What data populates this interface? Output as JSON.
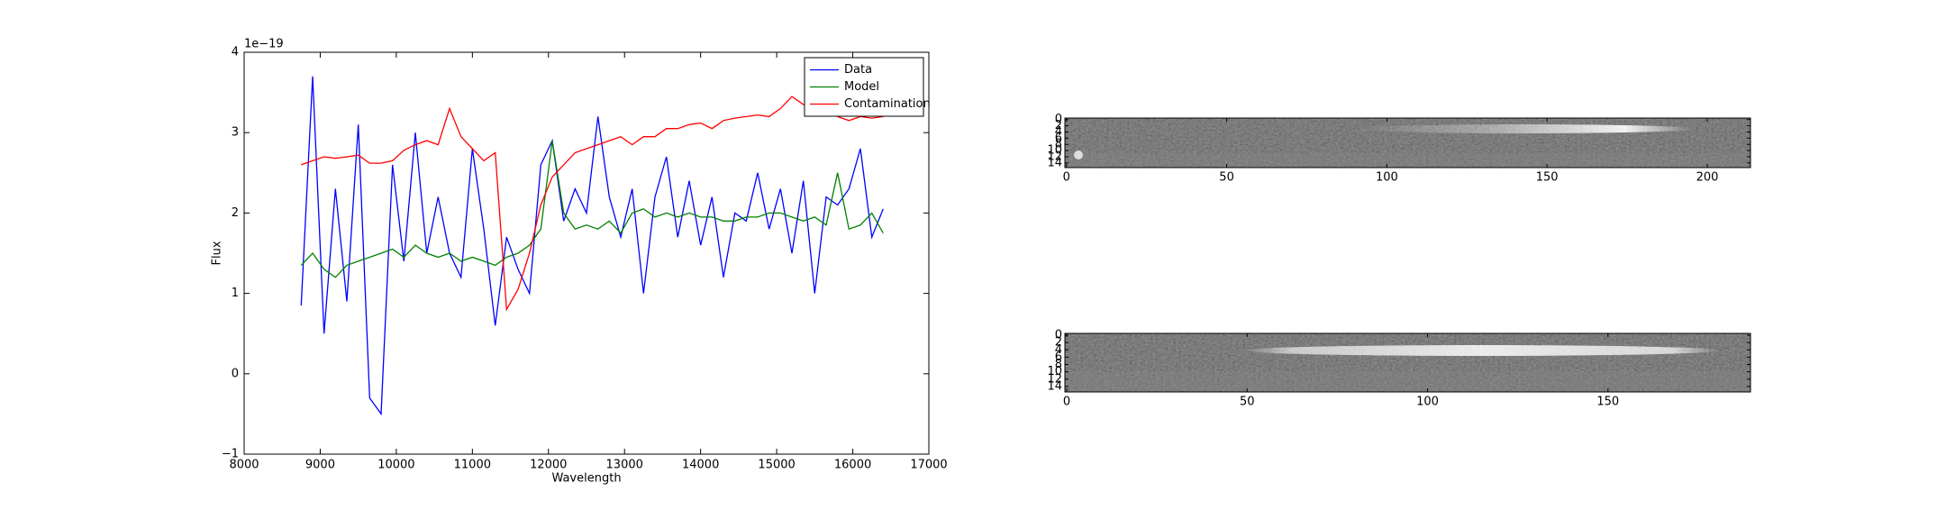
{
  "chart_data": [
    {
      "type": "line",
      "xlabel": "Wavelength",
      "ylabel": "Flux",
      "y_offset_label": "1e−19",
      "x": [
        8750,
        8900,
        9050,
        9200,
        9350,
        9500,
        9650,
        9800,
        9950,
        10100,
        10250,
        10400,
        10550,
        10700,
        10850,
        11000,
        11150,
        11300,
        11450,
        11600,
        11750,
        11900,
        12050,
        12200,
        12350,
        12500,
        12650,
        12800,
        12950,
        13100,
        13250,
        13400,
        13550,
        13700,
        13850,
        14000,
        14150,
        14300,
        14450,
        14600,
        14750,
        14900,
        15050,
        15200,
        15350,
        15500,
        15650,
        15800,
        15950,
        16100,
        16250,
        16400
      ],
      "series": [
        {
          "name": "Data",
          "color": "#0000ff",
          "values": [
            0.85,
            3.7,
            0.5,
            2.3,
            0.9,
            3.1,
            -0.3,
            -0.5,
            2.6,
            1.4,
            3.0,
            1.5,
            2.2,
            1.5,
            1.2,
            2.8,
            1.8,
            0.6,
            1.7,
            1.3,
            1.0,
            2.6,
            2.9,
            1.9,
            2.3,
            2.0,
            3.2,
            2.2,
            1.7,
            2.3,
            1.0,
            2.2,
            2.7,
            1.7,
            2.4,
            1.6,
            2.2,
            1.2,
            2.0,
            1.9,
            2.5,
            1.8,
            2.3,
            1.5,
            2.4,
            1.0,
            2.2,
            2.1,
            2.3,
            2.8,
            1.7,
            2.05
          ]
        },
        {
          "name": "Model",
          "color": "#008000",
          "values": [
            1.35,
            1.5,
            1.3,
            1.2,
            1.35,
            1.4,
            1.45,
            1.5,
            1.55,
            1.45,
            1.6,
            1.5,
            1.45,
            1.5,
            1.4,
            1.45,
            1.4,
            1.35,
            1.45,
            1.5,
            1.6,
            1.8,
            2.9,
            2.0,
            1.8,
            1.85,
            1.8,
            1.9,
            1.75,
            2.0,
            2.05,
            1.95,
            2.0,
            1.95,
            2.0,
            1.95,
            1.95,
            1.9,
            1.9,
            1.95,
            1.95,
            2.0,
            2.0,
            1.95,
            1.9,
            1.95,
            1.85,
            2.5,
            1.8,
            1.85,
            2.0,
            1.75
          ]
        },
        {
          "name": "Contamination",
          "color": "#ff0000",
          "values": [
            2.6,
            2.65,
            2.7,
            2.68,
            2.7,
            2.72,
            2.62,
            2.62,
            2.65,
            2.78,
            2.85,
            2.9,
            2.85,
            3.3,
            2.95,
            2.8,
            2.65,
            2.75,
            0.8,
            1.05,
            1.5,
            2.1,
            2.45,
            2.6,
            2.75,
            2.8,
            2.85,
            2.9,
            2.95,
            2.85,
            2.95,
            2.95,
            3.05,
            3.05,
            3.1,
            3.12,
            3.05,
            3.15,
            3.18,
            3.2,
            3.22,
            3.2,
            3.3,
            3.45,
            3.35,
            3.32,
            3.3,
            3.2,
            3.15,
            3.2,
            3.18,
            3.2
          ]
        }
      ],
      "xlim": [
        8000,
        17000
      ],
      "xticks": [
        8000,
        9000,
        10000,
        11000,
        12000,
        13000,
        14000,
        15000,
        16000,
        17000
      ],
      "ylim": [
        -1,
        4
      ],
      "yticks": [
        {
          "value": -1,
          "label": "−1"
        },
        0,
        1,
        2,
        3,
        4
      ],
      "legend": "upper right"
    },
    {
      "type": "image",
      "xlim": [
        -0.5,
        213.5
      ],
      "xticks": [
        0,
        50,
        100,
        150,
        200
      ],
      "ylim": [
        15.5,
        -0.5
      ],
      "yticks": [
        0,
        2,
        4,
        6,
        8,
        10,
        12,
        14
      ]
    },
    {
      "type": "image",
      "xlim": [
        -0.5,
        189.5
      ],
      "xticks": [
        0,
        50,
        100,
        150
      ],
      "ylim": [
        15.5,
        -0.5
      ],
      "yticks": [
        0,
        2,
        4,
        6,
        8,
        10,
        12,
        14
      ]
    }
  ]
}
